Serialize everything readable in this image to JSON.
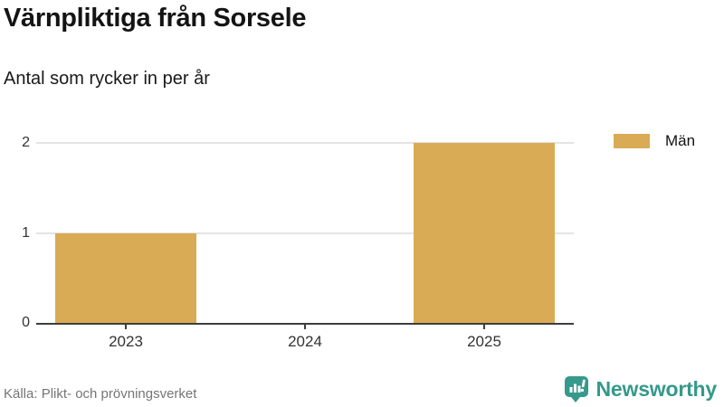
{
  "header": {
    "title": "Värnpliktiga från Sorsele",
    "subtitle": "Antal som rycker in per år"
  },
  "legend": {
    "items": [
      {
        "label": "Män",
        "color": "#d9ab55"
      }
    ]
  },
  "chart_data": {
    "type": "bar",
    "title": "Värnpliktiga från Sorsele",
    "subtitle": "Antal som rycker in per år",
    "categories": [
      "2023",
      "2024",
      "2025"
    ],
    "series": [
      {
        "name": "Män",
        "values": [
          1,
          0,
          2
        ],
        "color": "#d9ab55"
      }
    ],
    "xlabel": "",
    "ylabel": "",
    "ylim": [
      0,
      2
    ],
    "yticks": [
      0,
      1,
      2
    ],
    "grid": "horizontal",
    "legend_position": "top-right"
  },
  "footer": {
    "source": "Källa: Plikt- och prövningsverket",
    "brand": "Newsworthy"
  },
  "colors": {
    "bar": "#d9ab55",
    "brand_teal": "#35998b",
    "axis": "#3d3d3d",
    "gridline": "#e4e4e4"
  }
}
